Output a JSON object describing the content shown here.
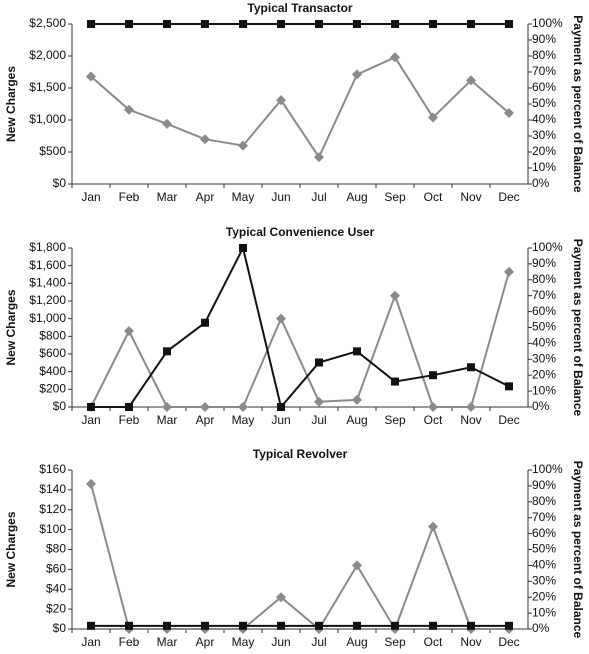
{
  "chart_data": [
    {
      "type": "line",
      "title": "Typical Transactor",
      "ylabel": "New Charges",
      "y2label": "Payment as percent of Balance",
      "categories": [
        "Jan",
        "Feb",
        "Mar",
        "Apr",
        "May",
        "Jun",
        "Jul",
        "Aug",
        "Sep",
        "Oct",
        "Nov",
        "Dec"
      ],
      "series": [
        {
          "color": "#8a8a8a",
          "marker": "diamond",
          "values": [
            1680,
            1160,
            940,
            700,
            600,
            1310,
            420,
            1710,
            1980,
            1040,
            1620,
            1110
          ]
        },
        {
          "color": "#111111",
          "marker": "square",
          "axis": "y2",
          "values": [
            100,
            100,
            100,
            100,
            100,
            100,
            100,
            100,
            100,
            100,
            100,
            100
          ]
        }
      ],
      "ylim": [
        0,
        2500
      ],
      "yticks": [
        {
          "value": 0,
          "label": "$0"
        },
        {
          "value": 500,
          "label": "$500"
        },
        {
          "value": 1000,
          "label": "$1,000"
        },
        {
          "value": 1500,
          "label": "$1,500"
        },
        {
          "value": 2000,
          "label": "$2,000"
        },
        {
          "value": 2500,
          "label": "$2,500"
        }
      ],
      "y2lim": [
        0,
        100
      ],
      "y2ticks": [
        {
          "value": 0,
          "label": "0%"
        },
        {
          "value": 10,
          "label": "10%"
        },
        {
          "value": 20,
          "label": "20%"
        },
        {
          "value": 30,
          "label": "30%"
        },
        {
          "value": 40,
          "label": "40%"
        },
        {
          "value": 50,
          "label": "50%"
        },
        {
          "value": 60,
          "label": "60%"
        },
        {
          "value": 70,
          "label": "70%"
        },
        {
          "value": 80,
          "label": "80%"
        },
        {
          "value": 90,
          "label": "90%"
        },
        {
          "value": 100,
          "label": "100%"
        }
      ]
    },
    {
      "type": "line",
      "title": "Typical Convenience User",
      "ylabel": "New Charges",
      "y2label": "Payment as percent of Balance",
      "categories": [
        "Jan",
        "Feb",
        "Mar",
        "Apr",
        "May",
        "Jun",
        "Jul",
        "Aug",
        "Sep",
        "Oct",
        "Nov",
        "Dec"
      ],
      "series": [
        {
          "color": "#8a8a8a",
          "marker": "diamond",
          "values": [
            0,
            860,
            0,
            0,
            0,
            1000,
            60,
            80,
            1260,
            0,
            0,
            1530
          ]
        },
        {
          "color": "#111111",
          "marker": "square",
          "axis": "y2",
          "values": [
            0,
            0,
            35,
            53,
            100,
            0,
            28,
            35,
            16,
            20,
            25,
            13
          ]
        }
      ],
      "ylim": [
        0,
        1800
      ],
      "yticks": [
        {
          "value": 0,
          "label": "$0"
        },
        {
          "value": 200,
          "label": "$200"
        },
        {
          "value": 400,
          "label": "$400"
        },
        {
          "value": 600,
          "label": "$600"
        },
        {
          "value": 800,
          "label": "$800"
        },
        {
          "value": 1000,
          "label": "$1,000"
        },
        {
          "value": 1200,
          "label": "$1,200"
        },
        {
          "value": 1400,
          "label": "$1,400"
        },
        {
          "value": 1600,
          "label": "$1,600"
        },
        {
          "value": 1800,
          "label": "$1,800"
        }
      ],
      "y2lim": [
        0,
        100
      ],
      "y2ticks": [
        {
          "value": 0,
          "label": "0%"
        },
        {
          "value": 10,
          "label": "10%"
        },
        {
          "value": 20,
          "label": "20%"
        },
        {
          "value": 30,
          "label": "30%"
        },
        {
          "value": 40,
          "label": "40%"
        },
        {
          "value": 50,
          "label": "50%"
        },
        {
          "value": 60,
          "label": "60%"
        },
        {
          "value": 70,
          "label": "70%"
        },
        {
          "value": 80,
          "label": "80%"
        },
        {
          "value": 90,
          "label": "90%"
        },
        {
          "value": 100,
          "label": "100%"
        }
      ]
    },
    {
      "type": "line",
      "title": "Typical Revolver",
      "ylabel": "New Charges",
      "y2label": "Payment as percent of Balance",
      "categories": [
        "Jan",
        "Feb",
        "Mar",
        "Apr",
        "May",
        "Jun",
        "Jul",
        "Aug",
        "Sep",
        "Oct",
        "Nov",
        "Dec"
      ],
      "series": [
        {
          "color": "#8a8a8a",
          "marker": "diamond",
          "values": [
            146,
            0,
            0,
            0,
            0,
            32,
            0,
            64,
            0,
            103,
            0,
            0
          ]
        },
        {
          "color": "#111111",
          "marker": "square",
          "axis": "y2",
          "values": [
            2,
            2,
            2,
            2,
            2,
            2,
            2,
            2,
            2,
            2,
            2,
            2
          ]
        }
      ],
      "ylim": [
        0,
        160
      ],
      "yticks": [
        {
          "value": 0,
          "label": "$0"
        },
        {
          "value": 20,
          "label": "$20"
        },
        {
          "value": 40,
          "label": "$40"
        },
        {
          "value": 60,
          "label": "$60"
        },
        {
          "value": 80,
          "label": "$80"
        },
        {
          "value": 100,
          "label": "$100"
        },
        {
          "value": 120,
          "label": "$120"
        },
        {
          "value": 140,
          "label": "$140"
        },
        {
          "value": 160,
          "label": "$160"
        }
      ],
      "y2lim": [
        0,
        100
      ],
      "y2ticks": [
        {
          "value": 0,
          "label": "0%"
        },
        {
          "value": 10,
          "label": "10%"
        },
        {
          "value": 20,
          "label": "20%"
        },
        {
          "value": 30,
          "label": "30%"
        },
        {
          "value": 40,
          "label": "40%"
        },
        {
          "value": 50,
          "label": "50%"
        },
        {
          "value": 60,
          "label": "60%"
        },
        {
          "value": 70,
          "label": "70%"
        },
        {
          "value": 80,
          "label": "80%"
        },
        {
          "value": 90,
          "label": "90%"
        },
        {
          "value": 100,
          "label": "100%"
        }
      ]
    }
  ]
}
